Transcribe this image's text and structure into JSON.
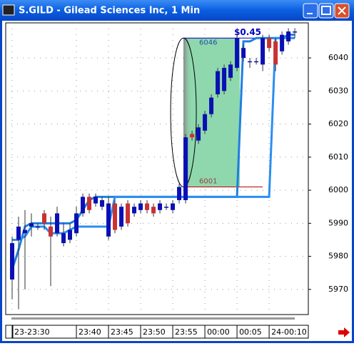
{
  "window": {
    "title": "S.GILD - Gilead Sciences Inc, 1 Min"
  },
  "chart_data": {
    "type": "candlestick",
    "x": [
      0,
      1,
      2,
      3,
      4,
      5,
      6,
      7,
      8,
      9,
      10,
      11,
      12,
      13,
      14,
      15,
      16,
      17,
      18,
      19,
      20,
      21,
      22,
      23,
      24,
      25,
      26,
      27,
      28,
      29,
      30,
      31,
      32,
      33,
      34,
      35,
      36,
      37,
      38,
      39,
      40,
      41,
      42,
      43,
      44
    ],
    "open": [
      5973,
      5985,
      5987,
      5989,
      5989,
      5993,
      5989,
      5987,
      5984,
      5985,
      5987,
      5993,
      5998,
      5996,
      5995,
      5986,
      5996,
      5989,
      5996,
      5993,
      5994,
      5996,
      5995,
      5994,
      5995,
      5994,
      5997,
      5997,
      6017,
      6015,
      6018,
      6023,
      6029,
      6030,
      6034,
      6037,
      6040,
      6039,
      6039,
      6038,
      6046,
      6045,
      6042,
      6045,
      6048
    ],
    "high": [
      5986,
      5992,
      5994,
      5993,
      5990,
      5994,
      5992,
      5995,
      5990,
      5990,
      5995,
      5999,
      5999,
      5999,
      5998,
      5998,
      5997,
      5996,
      5997,
      5996,
      5997,
      5997,
      5996,
      5997,
      5996,
      5997,
      6002,
      6017,
      6018,
      6020,
      6024,
      6029,
      6037,
      6038,
      6039,
      6047,
      6044,
      6040,
      6040,
      6047,
      6047,
      6046,
      6048,
      6049,
      6049
    ],
    "low": [
      5967,
      5964,
      5970,
      5986,
      5988,
      5988,
      5971,
      5986,
      5983,
      5984,
      5986,
      5992,
      5993,
      5995,
      5994,
      5985,
      5987,
      5988,
      5989,
      5992,
      5993,
      5993,
      5992,
      5993,
      5994,
      5993,
      5996,
      5996,
      6015,
      6014,
      6017,
      6022,
      6028,
      6029,
      6033,
      6036,
      6039,
      6037,
      6038,
      6036,
      6042,
      6036,
      6041,
      6044,
      6046
    ],
    "close": [
      5984,
      5989,
      5988,
      5990,
      5989,
      5990,
      5986,
      5993,
      5987,
      5988,
      5993,
      5998,
      5994,
      5998,
      5997,
      5996,
      5988,
      5995,
      5990,
      5995,
      5996,
      5994,
      5993,
      5996,
      5995,
      5996,
      6001,
      6016,
      6016,
      6019,
      6023,
      6028,
      6036,
      6037,
      6038,
      6046,
      6043,
      6039,
      6039,
      6046,
      6043,
      6038,
      6047,
      6048,
      6048
    ],
    "up_color": "#0a10b4",
    "down_color": "#c83232",
    "lines": [
      {
        "color": "#1e7fe0",
        "values": [
          5976,
          5982,
          5989,
          5990,
          5990,
          5990,
          5990,
          5990,
          5990,
          5990,
          5991,
          5994,
          5997,
          5998,
          5998,
          5998,
          5998,
          5998,
          5998,
          5998,
          5998,
          5998,
          5998,
          5998,
          5998,
          5998,
          5998,
          5998,
          5998,
          5998,
          5998,
          5998,
          5998,
          5998,
          5998,
          5998,
          6045,
          6045,
          6046,
          6046,
          6046,
          6046,
          6046,
          6047,
          6047
        ]
      },
      {
        "color": "#2c8ef0",
        "values": [
          5985,
          5985,
          5986,
          5989,
          5989,
          5989,
          5987,
          5987,
          5987,
          5988,
          5989,
          5989,
          5989,
          5989,
          5989,
          5989,
          5998,
          5998,
          5998,
          5998,
          5998,
          5998,
          5998,
          5998,
          5998,
          5998,
          5998,
          5998,
          5998,
          5998,
          5998,
          5998,
          5998,
          5998,
          5998,
          5998,
          5998,
          5998,
          5998,
          5998,
          5998,
          6046,
          6046,
          6046,
          6046
        ]
      }
    ],
    "range_high": 6046,
    "range_low": 6001,
    "change_label": "$0.45",
    "xlim": [
      -1,
      46.1
    ],
    "xticks": [
      {
        "value": 0,
        "label": "23-23:30"
      },
      {
        "value": 10,
        "label": "23:40"
      },
      {
        "value": 15,
        "label": "23:45"
      },
      {
        "value": 20,
        "label": "23:50"
      },
      {
        "value": 25,
        "label": "23:55"
      },
      {
        "value": 30,
        "label": "00:00"
      },
      {
        "value": 35,
        "label": "00:05"
      },
      {
        "value": 40,
        "label": "24-00:10"
      }
    ],
    "ylim": [
      5962.4,
      6050.6
    ],
    "yticks": [
      5970,
      5980,
      5990,
      6000,
      6010,
      6020,
      6030,
      6040
    ],
    "grid": true
  }
}
